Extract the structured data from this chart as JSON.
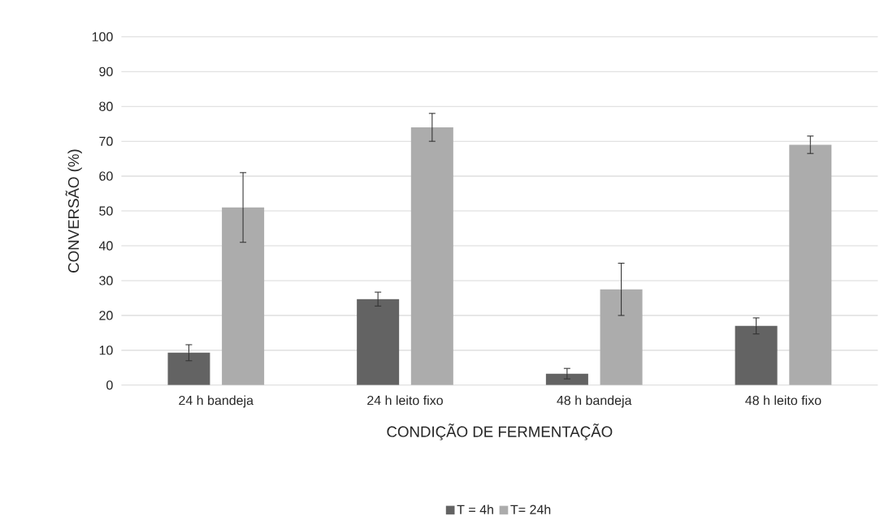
{
  "chart_data": {
    "type": "bar",
    "xlabel": "CONDIÇÃO DE FERMENTAÇÃO",
    "ylabel": "CONVERSÃO (%)",
    "categories": [
      "24 h bandeja",
      "24 h leito fixo",
      "48 h bandeja",
      "48 h leito fixo"
    ],
    "series": [
      {
        "name": "T = 4h",
        "color": "#636363",
        "values": [
          9.3,
          24.7,
          3.3,
          17
        ],
        "errors": [
          2.3,
          2,
          1.5,
          2.3
        ]
      },
      {
        "name": "T= 24h",
        "color": "#acacac",
        "values": [
          51,
          74,
          27.5,
          69
        ],
        "errors": [
          10,
          4,
          7.5,
          2.5
        ]
      }
    ],
    "ylim": [
      0,
      100
    ],
    "yticks": [
      0,
      10,
      20,
      30,
      40,
      50,
      60,
      70,
      80,
      90,
      100
    ],
    "grid": "y",
    "legend": "bottom"
  }
}
